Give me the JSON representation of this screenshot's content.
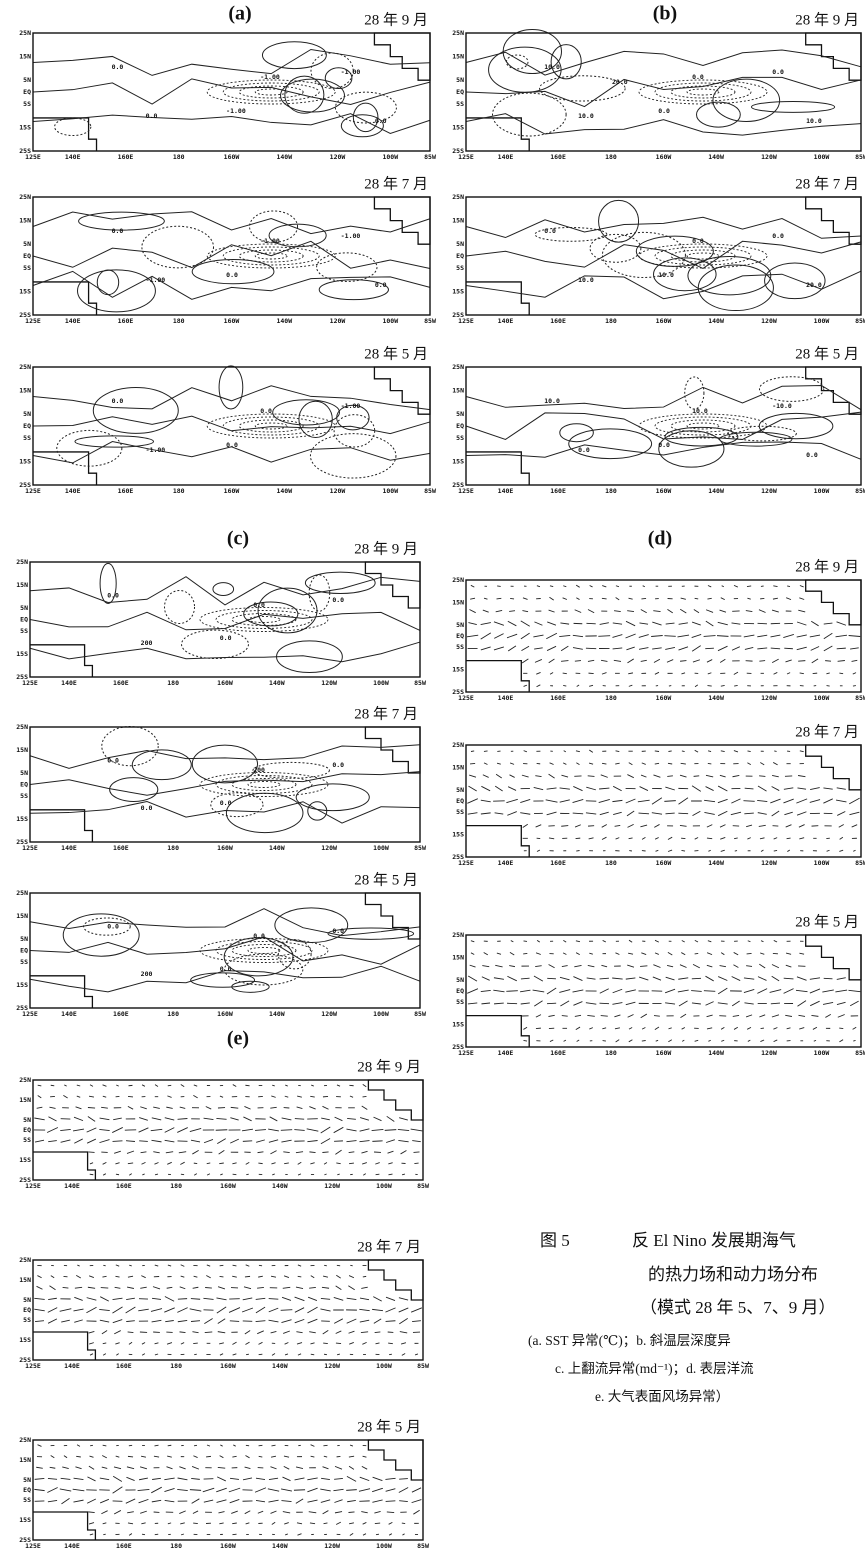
{
  "figure": {
    "axes": {
      "y_labels": [
        "25N",
        "15N",
        "5N",
        "EQ",
        "5S",
        "15S",
        "25S"
      ],
      "x_labels": [
        "125E",
        "140E",
        "160E",
        "180",
        "160W",
        "140W",
        "120W",
        "100W",
        "85W"
      ]
    },
    "groups": [
      {
        "label": "(a)",
        "kind": "contour",
        "maps": [
          {
            "month": "28 年 9 月",
            "contour_labels": [
              "0.0",
              "-1.00",
              "-1.00",
              "0.0",
              "-1.00",
              "0.0"
            ]
          },
          {
            "month": "28 年 7 月",
            "contour_labels": [
              "0.0",
              "0.0",
              "-1.00",
              "-1.00",
              "-1.00",
              "0.0"
            ]
          },
          {
            "month": "28 年 5 月",
            "contour_labels": [
              "0.0",
              "0.0",
              "-1.00",
              "-1.00",
              "0.0"
            ]
          }
        ]
      },
      {
        "label": "(b)",
        "kind": "contour",
        "maps": [
          {
            "month": "28 年 9 月",
            "contour_labels": [
              "10.0",
              "0.0",
              "0.0",
              "10.0",
              "0.0",
              "10.0",
              "20.0"
            ]
          },
          {
            "month": "28 年 7 月",
            "contour_labels": [
              "0.0",
              "10.0",
              "0.0",
              "10.0",
              "0.0",
              "20.0"
            ]
          },
          {
            "month": "28 年 5 月",
            "contour_labels": [
              "10.0",
              "0.0",
              "-10.0",
              "0.0",
              "10.0",
              "0.0"
            ]
          }
        ]
      },
      {
        "label": "(c)",
        "kind": "contour",
        "maps": [
          {
            "month": "28 年 9 月",
            "contour_labels": [
              "0.0",
              "0.0",
              "0.0",
              "200",
              "0.0"
            ]
          },
          {
            "month": "28 年 7 月",
            "contour_labels": [
              "0.0",
              "0.0",
              "0.0",
              "0.0",
              "200"
            ]
          },
          {
            "month": "28 年 5 月",
            "contour_labels": [
              "0.0",
              "0.0",
              "0.0",
              "200",
              "0.0"
            ]
          }
        ]
      },
      {
        "label": "(d)",
        "kind": "vector",
        "maps": [
          {
            "month": "28 年 9 月",
            "contour_labels": []
          },
          {
            "month": "28 年 7 月",
            "contour_labels": []
          },
          {
            "month": "28 年 5 月",
            "contour_labels": []
          }
        ]
      },
      {
        "label": "(e)",
        "kind": "vector",
        "maps": [
          {
            "month": "28 年 9 月",
            "contour_labels": []
          },
          {
            "month": "28 年 7 月",
            "contour_labels": []
          },
          {
            "month": "28 年 5 月",
            "contour_labels": []
          }
        ]
      }
    ],
    "caption": {
      "number": "图 5",
      "lines": [
        "反 El Nino 发展期海气",
        "的热力场和动力场分布",
        "（模式 28 年 5、7、9 月）",
        "(a. SST 异常(℃)；b. 斜温层深度异",
        "c. 上翻流异常(md⁻¹)；d. 表层洋流",
        "e. 大气表面风场异常）"
      ]
    }
  }
}
